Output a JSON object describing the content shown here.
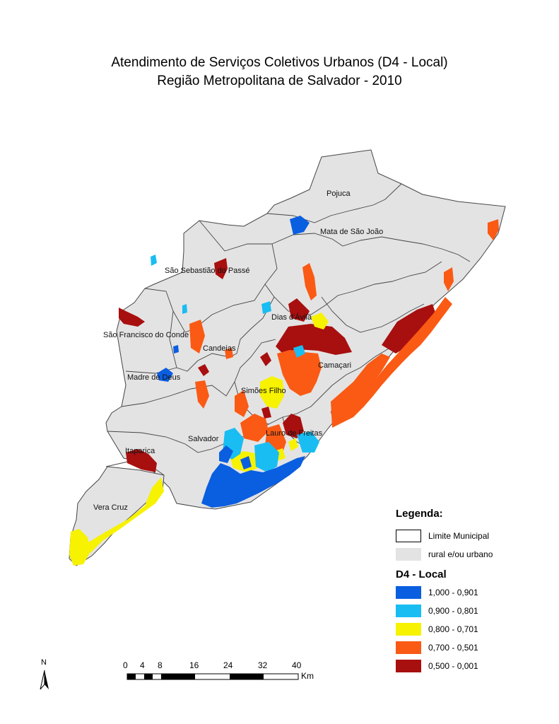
{
  "title": {
    "line1": "Atendimento de Serviços Coletivos Urbanos (D4 - Local)",
    "line2": "Região Metropolitana de Salvador - 2010"
  },
  "municipalities": {
    "pojuca": "Pojuca",
    "mata": "Mata de São João",
    "saosebastiao": "São Sebastião do Passé",
    "diasdavila": "Dias d'Ávila",
    "saofrancisco": "São Francisco do Conde",
    "candeias": "Candeias",
    "camacari": "Camaçari",
    "madre": "Madre de Deus",
    "simoes": "Simões Filho",
    "lauro": "Lauro de Freitas",
    "salvador": "Salvador",
    "itaparica": "Itaparica",
    "veracruz": "Vera Cruz"
  },
  "legend": {
    "title": "Legenda:",
    "limite": "Limite Municipal",
    "rural": "rural e/ou urbano",
    "classes_title": "D4 - Local",
    "classes": [
      {
        "label": "1,000 - 0,901",
        "color": "#0a5ee0"
      },
      {
        "label": "0,900 - 0,801",
        "color": "#19bdf2"
      },
      {
        "label": "0,800 - 0,701",
        "color": "#f6f200"
      },
      {
        "label": "0,700 - 0,501",
        "color": "#fa5a14"
      },
      {
        "label": "0,500 - 0,001",
        "color": "#a80f0f"
      }
    ]
  },
  "scale": {
    "ticks": [
      "0",
      "4",
      "8",
      "16",
      "24",
      "32",
      "40"
    ],
    "unit": "Km"
  },
  "north": "N",
  "colors": {
    "land": "#e3e3e3",
    "boundary": "#444444"
  }
}
